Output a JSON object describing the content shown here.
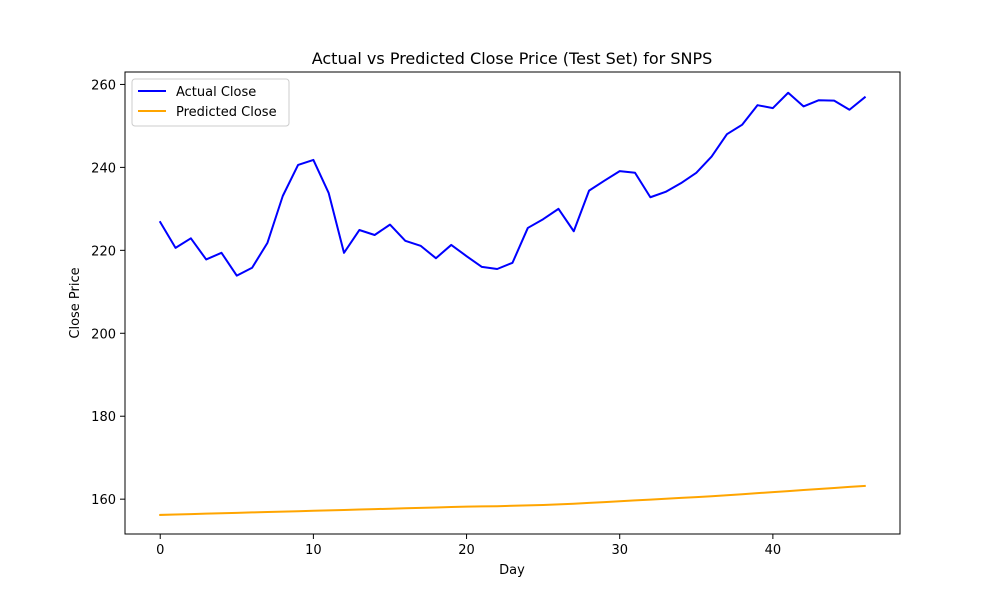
{
  "chart_data": {
    "type": "line",
    "title": "Actual vs Predicted Close Price (Test Set) for SNPS",
    "xlabel": "Day",
    "ylabel": "Close Price",
    "xlim": [
      -2.3,
      48.3
    ],
    "ylim": [
      151.6,
      263.0
    ],
    "xticks": [
      0,
      10,
      20,
      30,
      40
    ],
    "yticks": [
      160,
      180,
      200,
      220,
      240,
      260
    ],
    "grid": false,
    "legend_position": "upper-left",
    "x": [
      0,
      1,
      2,
      3,
      4,
      5,
      6,
      7,
      8,
      9,
      10,
      11,
      12,
      13,
      14,
      15,
      16,
      17,
      18,
      19,
      20,
      21,
      22,
      23,
      24,
      25,
      26,
      27,
      28,
      29,
      30,
      31,
      32,
      33,
      34,
      35,
      36,
      37,
      38,
      39,
      40,
      41,
      42,
      43,
      44,
      45,
      46
    ],
    "series": [
      {
        "name": "Actual Close",
        "color": "#0000ff",
        "values": [
          226.8,
          220.6,
          222.9,
          217.8,
          219.4,
          213.9,
          215.8,
          221.8,
          233.1,
          240.6,
          241.8,
          233.8,
          219.4,
          224.9,
          223.7,
          226.2,
          222.3,
          221.1,
          218.1,
          221.3,
          218.6,
          216.0,
          215.5,
          217.0,
          225.4,
          227.5,
          230.0,
          224.6,
          234.4,
          236.8,
          239.1,
          238.7,
          232.8,
          234.1,
          236.2,
          238.7,
          242.6,
          248.0,
          250.3,
          255.0,
          254.3,
          258.0,
          254.7,
          256.2,
          256.1,
          253.9,
          256.9
        ]
      },
      {
        "name": "Predicted Close",
        "color": "#ffa500",
        "values": [
          156.2,
          156.3,
          156.4,
          156.5,
          156.6,
          156.7,
          156.8,
          156.9,
          157.0,
          157.1,
          157.2,
          157.3,
          157.4,
          157.5,
          157.6,
          157.7,
          157.8,
          157.9,
          158.0,
          158.1,
          158.2,
          158.25,
          158.3,
          158.4,
          158.5,
          158.6,
          158.75,
          158.9,
          159.1,
          159.3,
          159.5,
          159.7,
          159.9,
          160.1,
          160.3,
          160.5,
          160.7,
          160.95,
          161.2,
          161.45,
          161.7,
          161.95,
          162.2,
          162.45,
          162.7,
          162.95,
          163.2
        ]
      }
    ]
  }
}
